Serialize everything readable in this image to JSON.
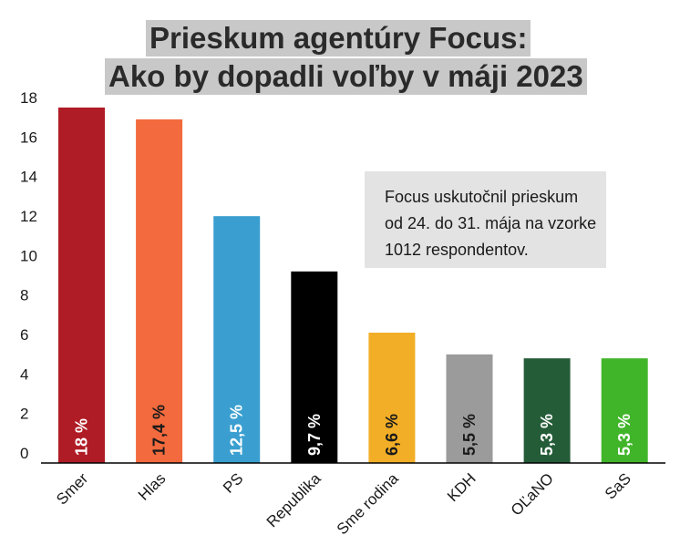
{
  "chart_data": {
    "type": "bar",
    "title_lines": [
      "Prieskum agentúry Focus:",
      "Ako by dopadli voľby v máji 2023"
    ],
    "note_lines": [
      "Focus uskutočnil prieskum",
      "od 24. do 31. mája na vzorke",
      "1012 respondentov."
    ],
    "categories": [
      "Smer",
      "Hlas",
      "PS",
      "Republika",
      "Sme rodina",
      "KDH",
      "OĽaNO",
      "SaS"
    ],
    "values": [
      18,
      17.4,
      12.5,
      9.7,
      6.6,
      5.5,
      5.3,
      5.3
    ],
    "data_labels": [
      "18 %",
      "17,4 %",
      "12,5 %",
      "9,7 %",
      "6,6 %",
      "5,5 %",
      "5,3 %",
      "5,3 %"
    ],
    "colors": [
      "#b01c25",
      "#f26a3d",
      "#3a9fd0",
      "#000000",
      "#f2ae26",
      "#9b9b9b",
      "#245c38",
      "#41b52a"
    ],
    "label_colors": [
      "#ffffff",
      "#1a1a1a",
      "#ffffff",
      "#ffffff",
      "#1a1a1a",
      "#1a1a1a",
      "#ffffff",
      "#ffffff"
    ],
    "yticks": [
      0,
      2,
      4,
      6,
      8,
      10,
      12,
      14,
      16,
      18
    ],
    "ylim": [
      0,
      18
    ],
    "xlabel": "",
    "ylabel": "",
    "grid": false,
    "legend": "none"
  }
}
